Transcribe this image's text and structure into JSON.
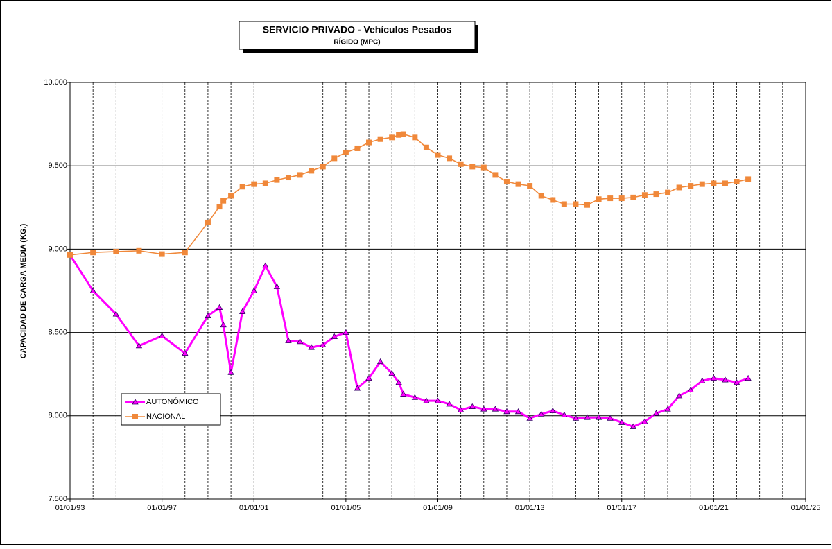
{
  "chart_data": {
    "type": "line",
    "title": "SERVICIO PRIVADO - Vehículos Pesados",
    "subtitle": "RÍGIDO (MPC)",
    "y_label": "CAPACIDAD  DE CARGA  MEDIA  (KG.)",
    "x": [
      1993,
      1994,
      1995,
      1996,
      1997,
      1998,
      1999,
      1999.5,
      1999.67,
      2000,
      2000.5,
      2001,
      2001.5,
      2002,
      2002.5,
      2003,
      2003.5,
      2004,
      2004.5,
      2005,
      2005.5,
      2006,
      2006.5,
      2007,
      2007.3,
      2007.5,
      2008,
      2008.5,
      2009,
      2009.5,
      2010,
      2010.5,
      2011,
      2011.5,
      2012,
      2012.5,
      2013,
      2013.5,
      2014,
      2014.5,
      2015,
      2015.5,
      2016,
      2016.5,
      2017,
      2017.5,
      2018,
      2018.5,
      2019,
      2019.5,
      2020,
      2020.5,
      2021,
      2021.5,
      2022,
      2022.5
    ],
    "series": [
      {
        "name": "AUTONÓMICO",
        "color": "#ff00ff",
        "marker": "triangle",
        "values": [
          8965,
          8750,
          8610,
          8420,
          8480,
          8375,
          8600,
          8650,
          8545,
          8260,
          8625,
          8750,
          8900,
          8775,
          8450,
          8445,
          8410,
          8425,
          8475,
          8500,
          8165,
          8225,
          8325,
          8255,
          8200,
          8130,
          8110,
          8090,
          8090,
          8070,
          8035,
          8055,
          8040,
          8040,
          8025,
          8025,
          7985,
          8010,
          8030,
          8005,
          7985,
          7990,
          7990,
          7985,
          7960,
          7935,
          7965,
          8015,
          8040,
          8120,
          8155,
          8210,
          8225,
          8215,
          8200,
          8225
        ]
      },
      {
        "name": "NACIONAL",
        "color": "#f0883a",
        "marker": "square",
        "values": [
          8965,
          8980,
          8985,
          8990,
          8970,
          8980,
          9160,
          9255,
          9290,
          9320,
          9375,
          9390,
          9395,
          9415,
          9430,
          9445,
          9470,
          9495,
          9545,
          9580,
          9605,
          9640,
          9660,
          9670,
          9685,
          9690,
          9670,
          9610,
          9565,
          9545,
          9510,
          9495,
          9490,
          9445,
          9405,
          9390,
          9380,
          9320,
          9295,
          9270,
          9270,
          9265,
          9300,
          9305,
          9305,
          9310,
          9325,
          9330,
          9340,
          9370,
          9380,
          9390,
          9395,
          9395,
          9405,
          9420
        ]
      }
    ],
    "xlim": [
      1993,
      2025
    ],
    "xticks": [
      {
        "value": 1993,
        "label": "01/01/93"
      },
      {
        "value": 1997,
        "label": "01/01/97"
      },
      {
        "value": 2001,
        "label": "01/01/01"
      },
      {
        "value": 2005,
        "label": "01/01/05"
      },
      {
        "value": 2009,
        "label": "01/01/09"
      },
      {
        "value": 2013,
        "label": "01/01/13"
      },
      {
        "value": 2017,
        "label": "01/01/17"
      },
      {
        "value": 2021,
        "label": "01/01/21"
      },
      {
        "value": 2025,
        "label": "01/01/25"
      }
    ],
    "xgrid": [
      1994,
      1995,
      1996,
      1997,
      1998,
      1999,
      2000,
      2001,
      2002,
      2003,
      2004,
      2005,
      2006,
      2007,
      2008,
      2009,
      2010,
      2011,
      2012,
      2013,
      2014,
      2015,
      2016,
      2017,
      2018,
      2019,
      2020,
      2021,
      2022,
      2023,
      2024
    ],
    "ylim": [
      7500,
      10000
    ],
    "yticks": [
      {
        "value": 7500,
        "label": "7.500"
      },
      {
        "value": 8000,
        "label": "8.000"
      },
      {
        "value": 8500,
        "label": "8.500"
      },
      {
        "value": 9000,
        "label": "9.000"
      },
      {
        "value": 9500,
        "label": "9.500"
      },
      {
        "value": 10000,
        "label": "10.000"
      }
    ],
    "grid": true
  }
}
